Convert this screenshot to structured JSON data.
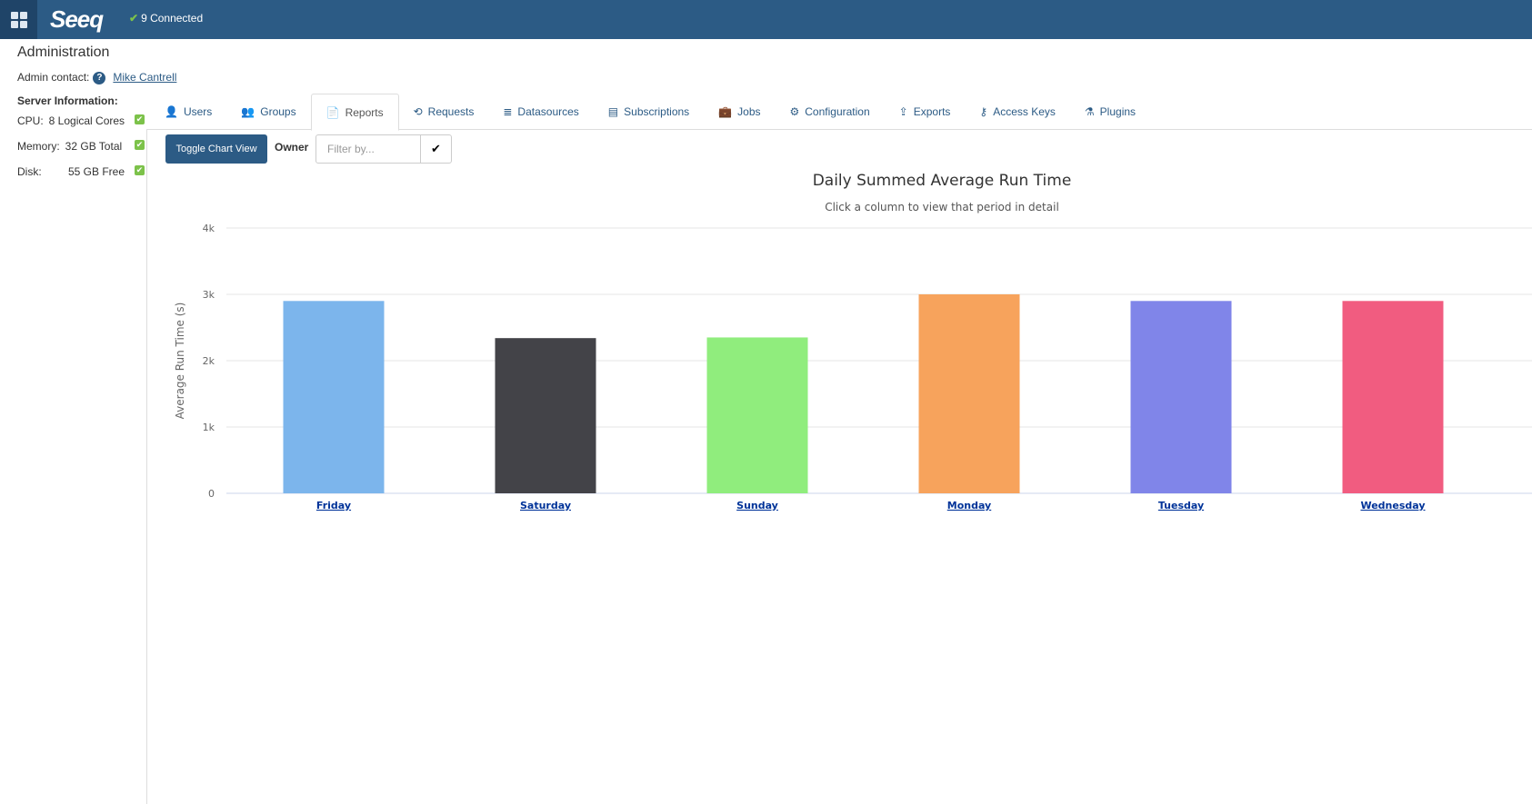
{
  "header": {
    "logo": "Seeq",
    "connection": "9 Connected"
  },
  "page": {
    "title": "Administration",
    "admin_contact_label": "Admin contact:",
    "admin_contact_name": "Mike Cantrell"
  },
  "server_info": {
    "heading": "Server Information:",
    "rows": [
      {
        "label": "CPU:",
        "value": "8 Logical Cores",
        "ok": true
      },
      {
        "label": "Memory:",
        "value": "32 GB Total",
        "ok": true
      },
      {
        "label": "Disk:",
        "value": "55 GB Free",
        "ok": true
      }
    ]
  },
  "tabs": [
    {
      "label": "Users",
      "icon": "user-icon"
    },
    {
      "label": "Groups",
      "icon": "users-icon"
    },
    {
      "label": "Reports",
      "icon": "file-icon",
      "active": true
    },
    {
      "label": "Requests",
      "icon": "history-icon"
    },
    {
      "label": "Datasources",
      "icon": "database-icon"
    },
    {
      "label": "Subscriptions",
      "icon": "list-icon"
    },
    {
      "label": "Jobs",
      "icon": "briefcase-icon"
    },
    {
      "label": "Configuration",
      "icon": "gears-icon"
    },
    {
      "label": "Exports",
      "icon": "export-icon"
    },
    {
      "label": "Access Keys",
      "icon": "key-icon"
    },
    {
      "label": "Plugins",
      "icon": "flask-icon"
    }
  ],
  "toolbar": {
    "toggle_label": "Toggle Chart View",
    "owner_label": "Owner",
    "filter_placeholder": "Filter by..."
  },
  "chart_data": {
    "type": "bar",
    "title": "Daily Summed Average Run Time",
    "subtitle": "Click a column to view that period in detail",
    "xlabel": "",
    "ylabel": "Average Run Time (s)",
    "ylim": [
      0,
      4000
    ],
    "yticks": [
      "0",
      "1k",
      "2k",
      "3k",
      "4k"
    ],
    "grid": true,
    "categories": [
      "Friday",
      "Saturday",
      "Sunday",
      "Monday",
      "Tuesday",
      "Wednesday"
    ],
    "values": [
      2900,
      2340,
      2350,
      3000,
      2900,
      2900
    ],
    "colors": [
      "#7cb5ec",
      "#434348",
      "#90ed7d",
      "#f7a35c",
      "#8085e9",
      "#f15c80"
    ]
  }
}
